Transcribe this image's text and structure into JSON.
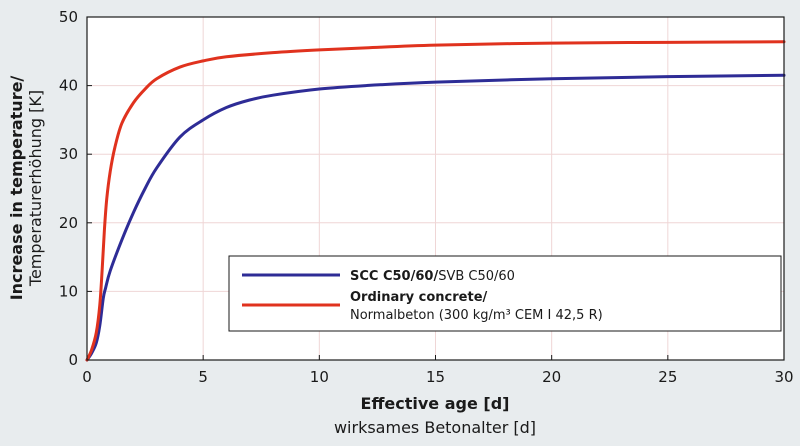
{
  "colors": {
    "background": "#e8ecee",
    "plot_background": "#ffffff",
    "grid": "#efd6d6",
    "axis": "#1a1a1a",
    "scc": "#2e2c96",
    "ordinary": "#e0321e"
  },
  "chart_data": {
    "type": "line",
    "grid": true,
    "legend_placement": "lower-right",
    "xlabel_bold": "Effective age [d]",
    "xlabel_normal": "wirksames Betonalter [d]",
    "ylabel_bold": "Increase in temperature/",
    "ylabel_normal": "Temperaturerhöhung [K]",
    "xlim": [
      0,
      30
    ],
    "ylim": [
      0,
      50
    ],
    "xticks": [
      0,
      5,
      10,
      15,
      20,
      25,
      30
    ],
    "yticks": [
      0,
      10,
      20,
      30,
      40,
      50
    ],
    "series": [
      {
        "id": "scc",
        "name_bold": "SCC C50/60/",
        "name_normal": "SVB C50/60",
        "x": [
          0,
          0.2,
          0.4,
          0.55,
          0.7,
          0.8,
          1,
          1.5,
          2,
          2.5,
          3,
          4,
          5,
          6,
          7,
          8,
          10,
          12,
          15,
          20,
          25,
          30
        ],
        "y": [
          0,
          1,
          2.5,
          5,
          9,
          10.5,
          13,
          17.5,
          21.5,
          25,
          28,
          32.5,
          35,
          36.8,
          37.9,
          38.6,
          39.5,
          40,
          40.5,
          41,
          41.3,
          41.5
        ]
      },
      {
        "id": "ordinary",
        "name_bold": "Ordinary concrete/",
        "name_normal": "Normalbeton (300 kg/m³ CEM I 42,5 R)",
        "x": [
          0,
          0.2,
          0.4,
          0.55,
          0.65,
          0.75,
          0.85,
          1,
          1.2,
          1.5,
          2,
          2.5,
          3,
          4,
          5,
          6,
          8,
          10,
          12,
          15,
          20,
          25,
          30
        ],
        "y": [
          0,
          1.5,
          4,
          8,
          13,
          19,
          23.5,
          27.5,
          31,
          34.5,
          37.5,
          39.5,
          41,
          42.7,
          43.6,
          44.2,
          44.8,
          45.2,
          45.5,
          45.9,
          46.2,
          46.3,
          46.4
        ]
      }
    ]
  }
}
